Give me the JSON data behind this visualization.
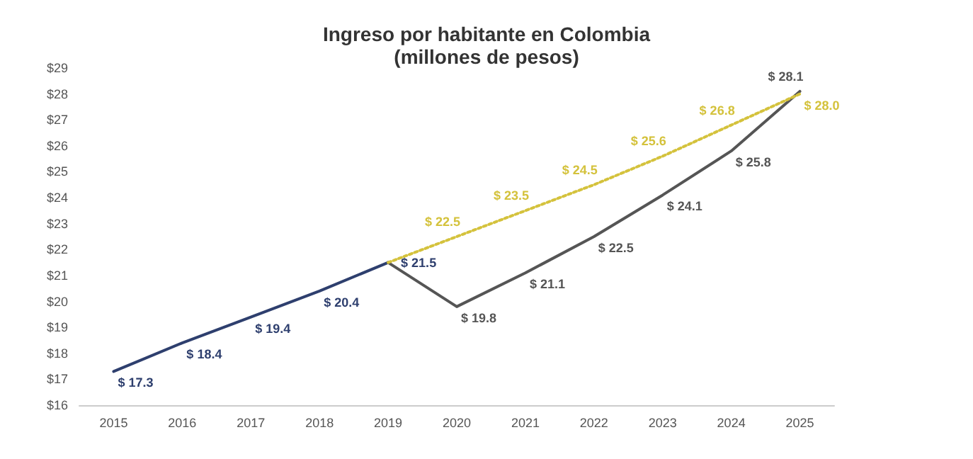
{
  "chart_data": {
    "type": "line",
    "title": "Ingreso por habitante en Colombia",
    "subtitle": "(millones de pesos)",
    "categories": [
      "2015",
      "2016",
      "2017",
      "2018",
      "2019",
      "2020",
      "2021",
      "2022",
      "2023",
      "2024",
      "2025"
    ],
    "series": [
      {
        "color": "#2e3f6e",
        "line_style": "solid",
        "values": [
          17.3,
          18.4,
          19.4,
          20.4,
          21.5,
          null,
          null,
          null,
          null,
          null,
          null
        ],
        "value_labels": [
          "$ 17.3",
          "$ 18.4",
          "$ 19.4",
          "$ 20.4",
          "$ 21.5",
          null,
          null,
          null,
          null,
          null,
          null
        ]
      },
      {
        "color": "#555555",
        "line_style": "solid",
        "values": [
          null,
          null,
          null,
          null,
          21.5,
          19.8,
          21.1,
          22.5,
          24.1,
          25.8,
          28.1
        ],
        "value_labels": [
          null,
          null,
          null,
          null,
          null,
          "$ 19.8",
          "$ 21.1",
          "$ 22.5",
          "$ 24.1",
          "$ 25.8",
          "$ 28.1"
        ]
      },
      {
        "color": "#d4c23c",
        "line_style": "dotted",
        "values": [
          null,
          null,
          null,
          null,
          21.5,
          22.5,
          23.5,
          24.5,
          25.6,
          26.8,
          28.0
        ],
        "value_labels": [
          null,
          null,
          null,
          null,
          null,
          "$ 22.5",
          "$ 23.5",
          "$ 24.5",
          "$ 25.6",
          "$ 26.8",
          "$ 28.0"
        ]
      }
    ],
    "ylim": [
      16,
      29
    ],
    "yticks": [
      {
        "value": 16,
        "label": "$16"
      },
      {
        "value": 17,
        "label": "$17"
      },
      {
        "value": 18,
        "label": "$18"
      },
      {
        "value": 19,
        "label": "$19"
      },
      {
        "value": 20,
        "label": "$20"
      },
      {
        "value": 21,
        "label": "$21"
      },
      {
        "value": 22,
        "label": "$22"
      },
      {
        "value": 23,
        "label": "$23"
      },
      {
        "value": 24,
        "label": "$24"
      },
      {
        "value": 25,
        "label": "$25"
      },
      {
        "value": 26,
        "label": "$26"
      },
      {
        "value": 27,
        "label": "$27"
      },
      {
        "value": 28,
        "label": "$28"
      },
      {
        "value": 29,
        "label": "$29"
      }
    ],
    "grid": false,
    "marker": "none"
  }
}
